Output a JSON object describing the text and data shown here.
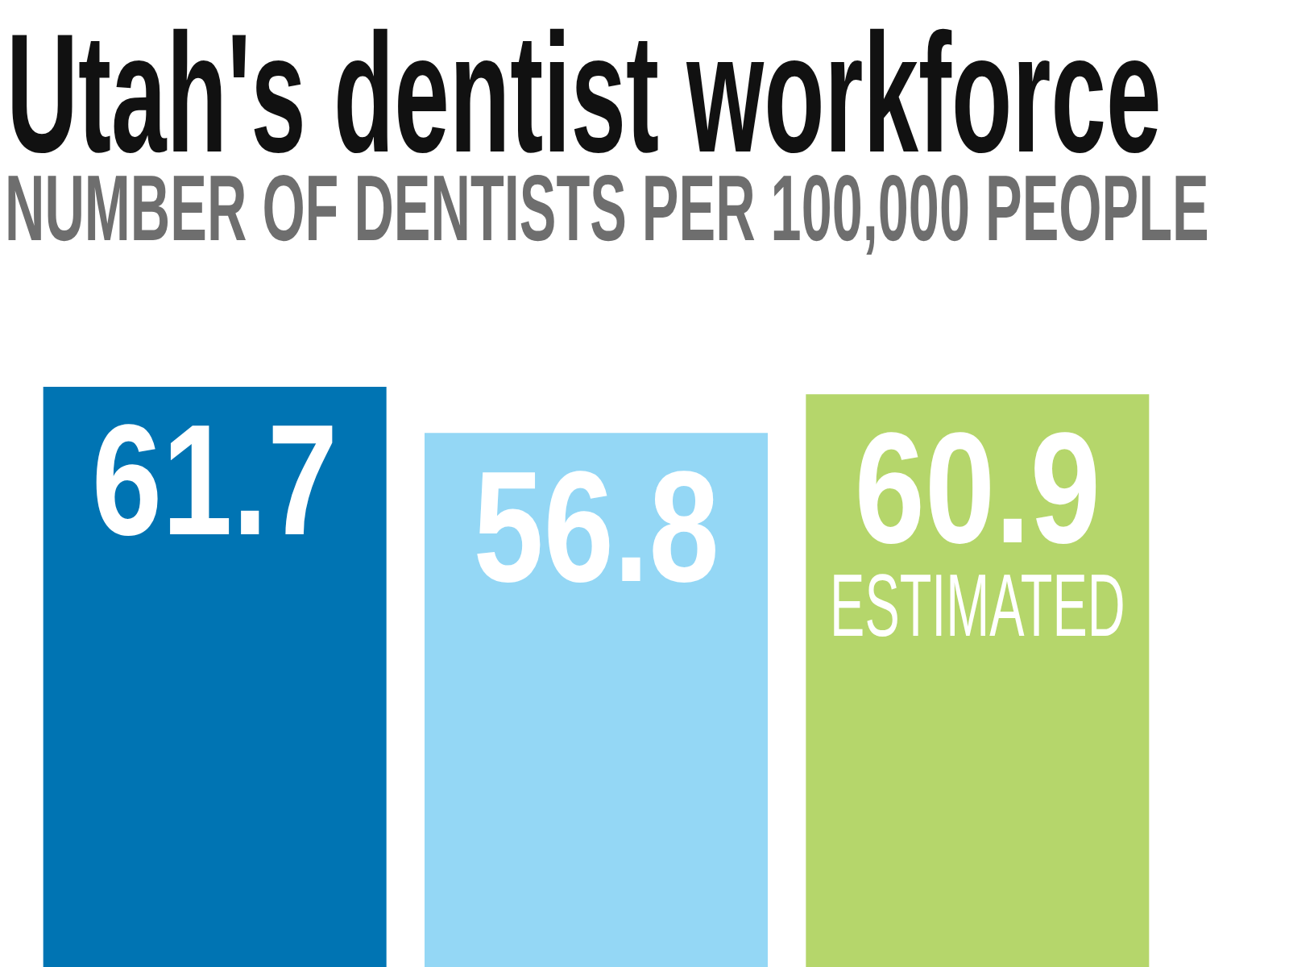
{
  "chart_data": {
    "type": "bar",
    "title": "Utah's dentist workforce",
    "subtitle": "NUMBER OF DENTISTS PER 100,000 PEOPLE",
    "categories": [
      null,
      null,
      null
    ],
    "values": [
      61.7,
      56.8,
      60.9
    ],
    "colors": [
      "#0074b3",
      "#94d7f5",
      "#b5d66b"
    ],
    "data_labels": true,
    "tick_labels": false,
    "annotations": [
      {
        "text": "ESTIMATED",
        "y": 60.9
      }
    ]
  }
}
